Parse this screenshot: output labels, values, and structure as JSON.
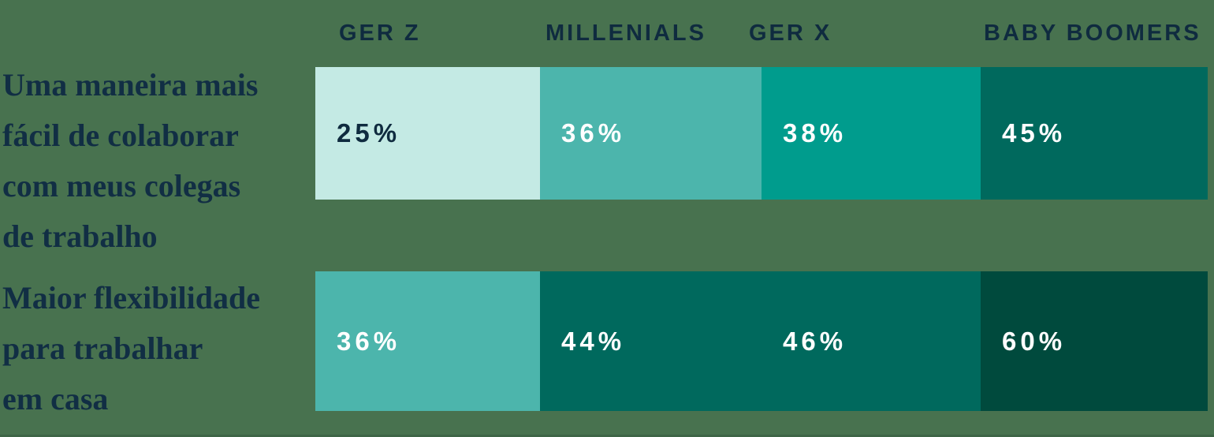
{
  "page": {
    "background_color": "#48724f",
    "header_text_color": "#0f2b3f",
    "row_label_text_color": "#112e44"
  },
  "chart_data": {
    "type": "heatmap",
    "columns": [
      "GER Z",
      "MILLENIALS",
      "GER X",
      "BABY BOOMERS"
    ],
    "unit": "%",
    "color_scale": [
      "#c4eae4",
      "#4cb5ac",
      "#009c8d",
      "#00695d",
      "#004a3d"
    ],
    "rows": [
      {
        "label": "Uma maneira mais fácil de colaborar com meus colegas de trabalho",
        "label_lines": [
          "Uma maneira mais",
          "fácil de colaborar",
          "com meus colegas",
          "de trabalho"
        ],
        "values": [
          25,
          36,
          38,
          45
        ],
        "cells": [
          {
            "display": "25%",
            "bg": "#c4eae4",
            "fg": "#0f2b3f"
          },
          {
            "display": "36%",
            "bg": "#4cb5ac",
            "fg": "#ffffff"
          },
          {
            "display": "38%",
            "bg": "#009c8d",
            "fg": "#ffffff"
          },
          {
            "display": "45%",
            "bg": "#00695d",
            "fg": "#ffffff"
          }
        ]
      },
      {
        "label": "Maior flexibilidade para trabalhar em casa",
        "label_lines": [
          "Maior flexibilidade",
          "para trabalhar",
          "em casa"
        ],
        "values": [
          36,
          44,
          46,
          60
        ],
        "cells": [
          {
            "display": "36%",
            "bg": "#4cb5ac",
            "fg": "#ffffff"
          },
          {
            "display": "44%",
            "bg": "#00695d",
            "fg": "#ffffff"
          },
          {
            "display": "46%",
            "bg": "#00695d",
            "fg": "#ffffff"
          },
          {
            "display": "60%",
            "bg": "#004a3d",
            "fg": "#ffffff"
          }
        ]
      }
    ]
  }
}
